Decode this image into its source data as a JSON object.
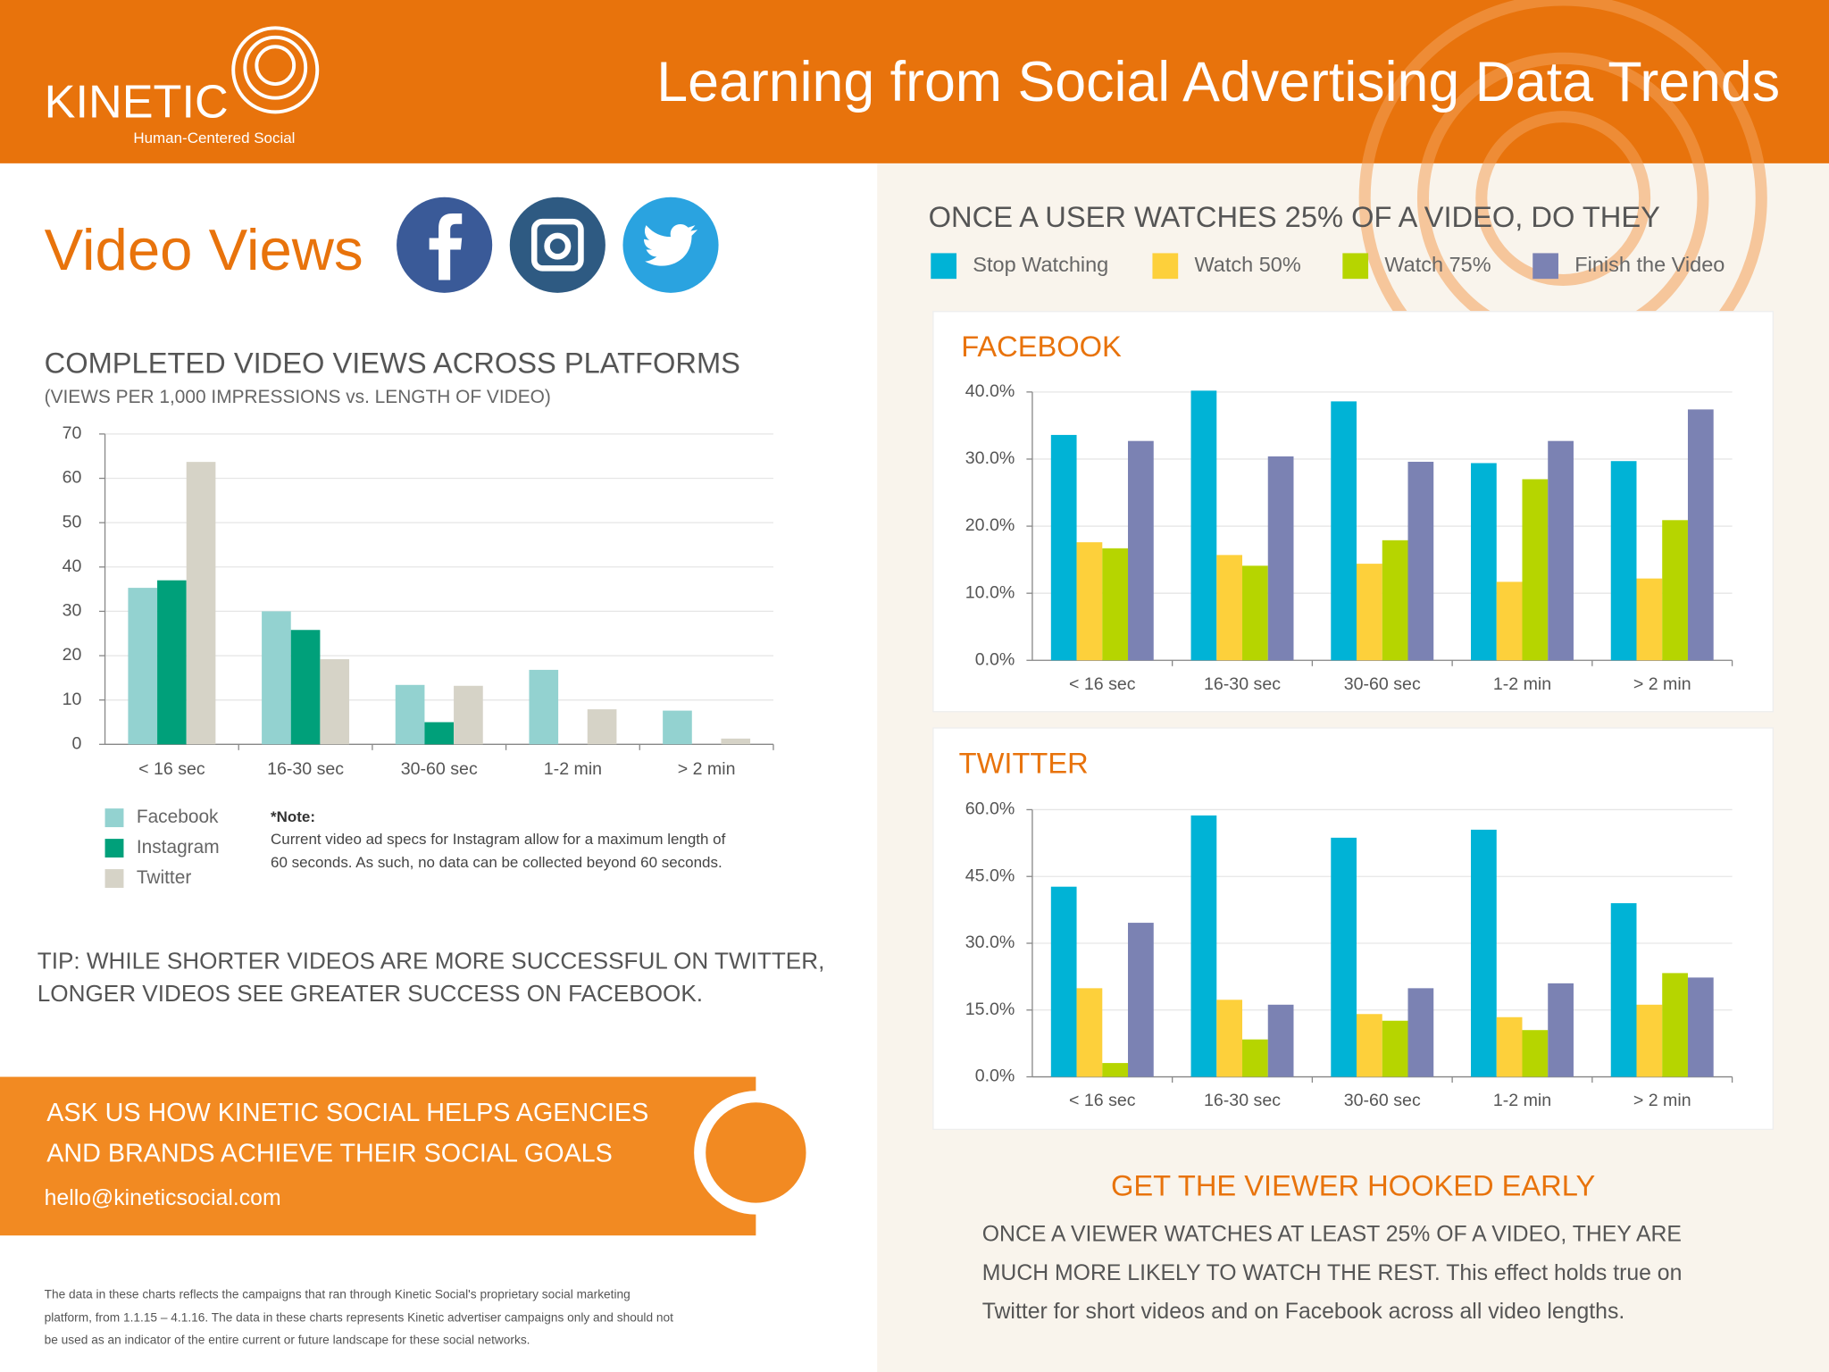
{
  "header": {
    "brand": "KINETIC",
    "tagline": "Human-Centered Social",
    "title": "Learning from Social Advertising Data Trends"
  },
  "section_title": "Video Views",
  "chart_data": [
    {
      "type": "bar",
      "title": "COMPLETED VIDEO VIEWS ACROSS PLATFORMS",
      "subtitle": "(VIEWS PER 1,000 IMPRESSIONS vs. LENGTH OF VIDEO)",
      "categories": [
        "< 16 sec",
        "16-30 sec",
        "30-60 sec",
        "1-2 min",
        "> 2 min"
      ],
      "series": [
        {
          "name": "Facebook",
          "color": "#93d2d0",
          "values": [
            35.3,
            30,
            13.4,
            16.8,
            7.6
          ]
        },
        {
          "name": "Instagram",
          "color": "#00a07a",
          "values": [
            37,
            25.8,
            5,
            null,
            null
          ]
        },
        {
          "name": "Twitter",
          "color": "#d6d3c7",
          "values": [
            63.7,
            19.2,
            13.2,
            7.9,
            1.3
          ]
        }
      ],
      "ylim": [
        0,
        70
      ],
      "yticks": [
        0,
        10,
        20,
        30,
        40,
        50,
        60,
        70
      ],
      "grid": true,
      "legend": "bottom-left"
    },
    {
      "type": "bar",
      "title": "FACEBOOK",
      "categories": [
        "< 16 sec",
        "16-30 sec",
        "30-60 sec",
        "1-2 min",
        "> 2 min"
      ],
      "series": [
        {
          "name": "Stop Watching",
          "color": "#00b3d6",
          "values": [
            33.6,
            40.2,
            38.6,
            29.4,
            29.7
          ]
        },
        {
          "name": "Watch 50%",
          "color": "#fdd03b",
          "values": [
            17.6,
            15.7,
            14.4,
            11.7,
            12.2
          ]
        },
        {
          "name": "Watch 75%",
          "color": "#b6d500",
          "values": [
            16.7,
            14.1,
            17.9,
            27,
            20.9
          ]
        },
        {
          "name": "Finish the Video",
          "color": "#7b82b3",
          "values": [
            32.7,
            30.4,
            29.6,
            32.7,
            37.4
          ]
        }
      ],
      "ylim": [
        0,
        40
      ],
      "yticks": [
        {
          "value": 0,
          "label": "0.0%"
        },
        {
          "value": 10,
          "label": "10.0%"
        },
        {
          "value": 20,
          "label": "20.0%"
        },
        {
          "value": 30,
          "label": "30.0%"
        },
        {
          "value": 40,
          "label": "40.0%"
        }
      ],
      "grid": true,
      "legend": "top"
    },
    {
      "type": "bar",
      "title": "TWITTER",
      "categories": [
        "< 16 sec",
        "16-30 sec",
        "30-60 sec",
        "1-2 min",
        "> 2 min"
      ],
      "series": [
        {
          "name": "Stop Watching",
          "color": "#00b3d6",
          "values": [
            42.7,
            58.7,
            53.7,
            55.5,
            39
          ]
        },
        {
          "name": "Watch 50%",
          "color": "#fdd03b",
          "values": [
            19.9,
            17.3,
            14.1,
            13.4,
            16.2
          ]
        },
        {
          "name": "Watch 75%",
          "color": "#b6d500",
          "values": [
            3.1,
            8.4,
            12.6,
            10.5,
            23.3
          ]
        },
        {
          "name": "Finish the Video",
          "color": "#7b82b3",
          "values": [
            34.6,
            16.2,
            19.9,
            21,
            22.3
          ]
        }
      ],
      "ylim": [
        0,
        60
      ],
      "yticks": [
        {
          "value": 0,
          "label": "0.0%"
        },
        {
          "value": 15,
          "label": "15.0%"
        },
        {
          "value": 30,
          "label": "30.0%"
        },
        {
          "value": 45,
          "label": "45.0%"
        },
        {
          "value": 60,
          "label": "60.0%"
        }
      ],
      "grid": true,
      "legend": "top"
    }
  ],
  "question_legend": {
    "title": "ONCE A USER WATCHES 25% OF A VIDEO, DO THEY"
  },
  "note": {
    "label": "*Note:",
    "lines": [
      "Current video ad specs for Instagram allow for a maximum length of",
      "60 seconds. As such, no data can be collected beyond 60 seconds."
    ]
  },
  "tip": {
    "lines": [
      "TIP: WHILE SHORTER VIDEOS ARE MORE SUCCESSFUL ON TWITTER,",
      "LONGER VIDEOS SEE GREATER SUCCESS ON FACEBOOK."
    ]
  },
  "cta": {
    "lines": [
      "ASK US HOW KINETIC SOCIAL HELPS AGENCIES",
      "AND BRANDS ACHIEVE THEIR SOCIAL GOALS"
    ],
    "email": "hello@kineticsocial.com"
  },
  "disclaimer": {
    "lines": [
      "The data in these charts reflects the campaigns that ran through Kinetic Social's proprietary social marketing",
      "platform, from 1.1.15 – 4.1.16. The data in these charts represents Kinetic advertiser campaigns only and should not",
      "be used as an indicator of the entire current or future landscape for these social networks."
    ]
  },
  "hook": {
    "title": "GET THE VIEWER HOOKED EARLY",
    "lines": [
      "ONCE A VIEWER WATCHES AT LEAST 25% OF A VIDEO, THEY ARE",
      "MUCH MORE LIKELY TO WATCH THE REST. This effect holds true on",
      "Twitter for short videos and on Facebook across all video lengths."
    ]
  }
}
